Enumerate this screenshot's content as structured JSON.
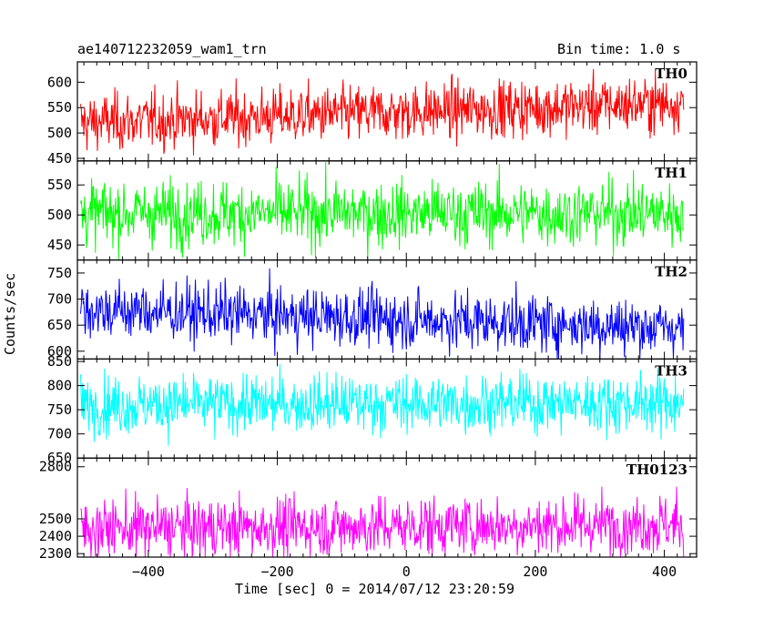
{
  "header": {
    "title": "ae140712232059_wam1_trn",
    "bin_time": "Bin time: 1.0 s"
  },
  "axes": {
    "ylabel": "Counts/sec",
    "xlabel": "Time [sec] 0 = 2014/07/12 23:20:59"
  },
  "chart_data": {
    "type": "line",
    "title": "ae140712232059_wam1_trn",
    "xlabel": "Time [sec] 0 = 2014/07/12 23:20:59",
    "ylabel": "Counts/sec",
    "xlim": [
      -510,
      450
    ],
    "x_ticks": [
      -400,
      -200,
      0,
      200,
      400
    ],
    "x_range_data": [
      -505,
      430
    ],
    "bin_seconds": 1.0,
    "panels": [
      {
        "name": "TH0",
        "color": "#ff0000",
        "ylim": [
          445,
          640
        ],
        "y_ticks": [
          450,
          500,
          550,
          600
        ],
        "trend": {
          "x": [
            -505,
            430
          ],
          "y": [
            520,
            560
          ]
        },
        "noise_sd": 28
      },
      {
        "name": "TH1",
        "color": "#00ff00",
        "ylim": [
          425,
          590
        ],
        "y_ticks": [
          450,
          500,
          550
        ],
        "trend": {
          "x": [
            -505,
            430
          ],
          "y": [
            503,
            503
          ]
        },
        "noise_sd": 27
      },
      {
        "name": "TH2",
        "color": "#0000ff",
        "ylim": [
          585,
          775
        ],
        "y_ticks": [
          600,
          650,
          700,
          750
        ],
        "trend": {
          "x": [
            -505,
            430
          ],
          "y": [
            680,
            645
          ]
        },
        "noise_sd": 28
      },
      {
        "name": "TH3",
        "color": "#00ffff",
        "ylim": [
          650,
          855
        ],
        "y_ticks": [
          650,
          700,
          750,
          800,
          850
        ],
        "trend": {
          "x": [
            -505,
            430
          ],
          "y": [
            760,
            765
          ]
        },
        "noise_sd": 30
      },
      {
        "name": "TH0123",
        "color": "#ff00ff",
        "ylim": [
          2280,
          2850
        ],
        "y_ticks": [
          2300,
          2400,
          2500,
          2800
        ],
        "trend": {
          "x": [
            -505,
            430
          ],
          "y": [
            2445,
            2470
          ]
        },
        "noise_sd": 85
      }
    ]
  }
}
